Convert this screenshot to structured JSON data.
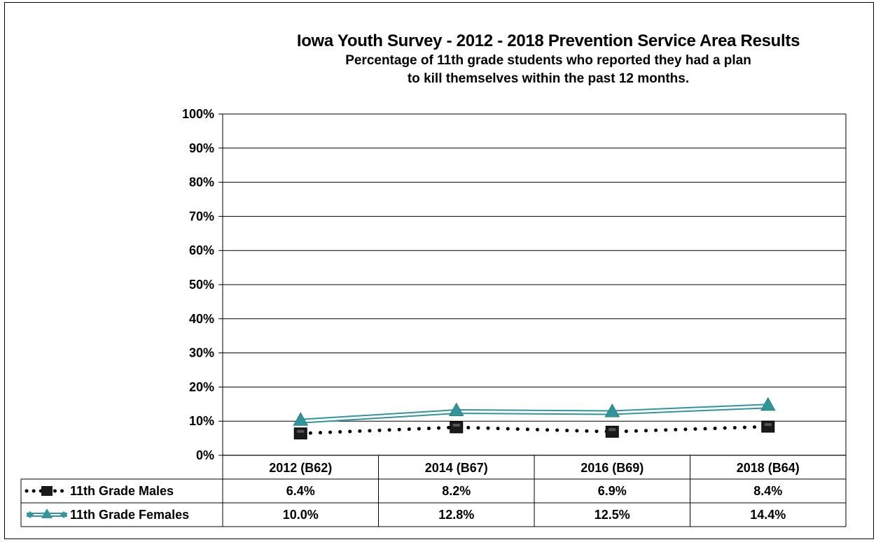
{
  "chart_data": {
    "type": "line",
    "title": "Iowa Youth Survey - 2012 - 2018 Prevention Service Area Results",
    "subtitle_lines": [
      "Percentage of 11th grade students who reported they had a plan",
      "to kill themselves within the past 12 months."
    ],
    "categories": [
      "2012 (B62)",
      "2014 (B67)",
      "2016 (B69)",
      "2018 (B64)"
    ],
    "yticks": [
      "0%",
      "10%",
      "20%",
      "30%",
      "40%",
      "50%",
      "60%",
      "70%",
      "80%",
      "90%",
      "100%"
    ],
    "ylim": [
      0,
      100
    ],
    "grid": true,
    "legend": "data-table",
    "series": [
      {
        "name": "11th Grade Males",
        "values": [
          6.4,
          8.2,
          6.9,
          8.4
        ],
        "labels": [
          "6.4%",
          "8.2%",
          "6.9%",
          "8.4%"
        ],
        "color": "#000000",
        "line_style": "dotted",
        "marker": "square"
      },
      {
        "name": "11th Grade Females",
        "values": [
          10.0,
          12.8,
          12.5,
          14.4
        ],
        "labels": [
          "10.0%",
          "12.8%",
          "12.5%",
          "14.4%"
        ],
        "color": "#31959B",
        "line_style": "double",
        "marker": "triangle"
      }
    ]
  }
}
